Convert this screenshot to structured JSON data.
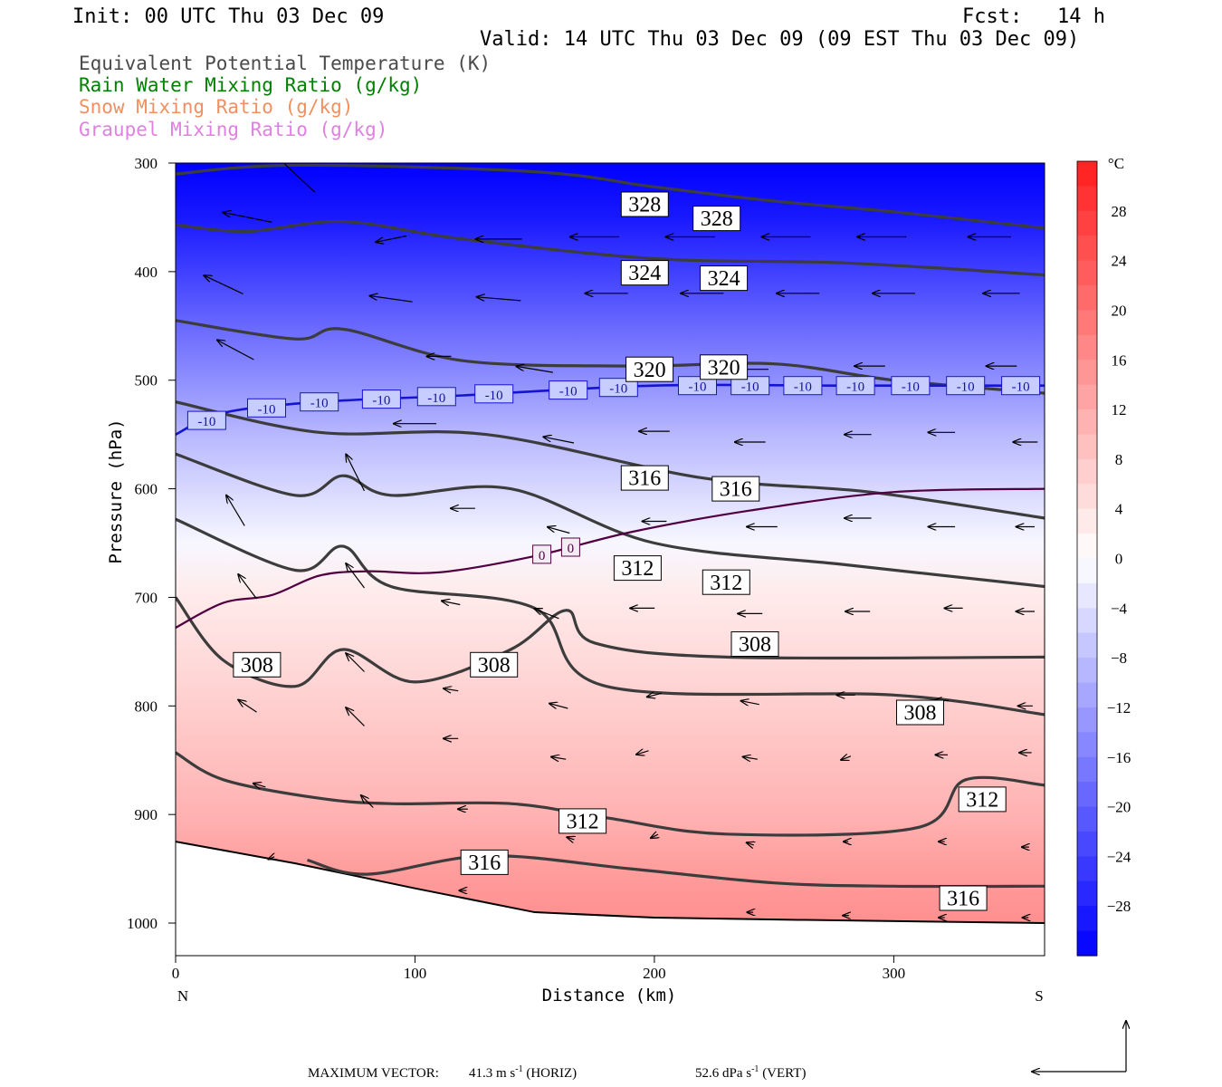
{
  "header": {
    "init": "Init: 00 UTC Thu 03 Dec 09",
    "fcst_label": "Fcst:",
    "fcst_value": "14 h",
    "valid": "Valid: 14 UTC Thu 03 Dec 09 (09 EST Thu 03 Dec 09)"
  },
  "legend": [
    {
      "text": "Equivalent Potential Temperature (K)",
      "color": "#4a4a4a"
    },
    {
      "text": "Rain Water Mixing Ratio (g/kg)",
      "color": "#008000"
    },
    {
      "text": "Snow Mixing Ratio (g/kg)",
      "color": "#f09060"
    },
    {
      "text": "Graupel Mixing Ratio (g/kg)",
      "color": "#e080e0"
    }
  ],
  "footer": {
    "label": "MAXIMUM VECTOR:",
    "horiz_value": "41.3 m s",
    "horiz_exp": "-1",
    "horiz_tag": "(HORIZ)",
    "vert_value": "52.6 dPa s",
    "vert_exp": "-1",
    "vert_tag": "(VERT)"
  },
  "chart_data": {
    "type": "cross-section",
    "xlabel": "Distance (km)",
    "ylabel": "Pressure (hPa)",
    "x_ticks": [
      0,
      100,
      200,
      300
    ],
    "x_range": [
      0,
      363
    ],
    "y_ticks": [
      300,
      400,
      500,
      600,
      700,
      800,
      900,
      1000
    ],
    "y_range": [
      300,
      1030
    ],
    "left_end_label": "N",
    "right_end_label": "S",
    "colorbar": {
      "unit": "°C",
      "labels": [
        28,
        24,
        20,
        16,
        12,
        8,
        4,
        0,
        -4,
        -8,
        -12,
        -16,
        -20,
        -24,
        -28
      ],
      "range": [
        -32,
        32
      ],
      "warm_color": "#ff1e1e",
      "cold_color": "#0000ff"
    },
    "temperature_profile": [
      {
        "p": 300,
        "t": -32
      },
      {
        "p": 350,
        "t": -29
      },
      {
        "p": 400,
        "t": -24
      },
      {
        "p": 450,
        "t": -19
      },
      {
        "p": 500,
        "t": -14
      },
      {
        "p": 550,
        "t": -9
      },
      {
        "p": 600,
        "t": -5
      },
      {
        "p": 650,
        "t": -1
      },
      {
        "p": 700,
        "t": 3
      },
      {
        "p": 750,
        "t": 5
      },
      {
        "p": 800,
        "t": 7
      },
      {
        "p": 850,
        "t": 9
      },
      {
        "p": 900,
        "t": 11
      },
      {
        "p": 950,
        "t": 14
      },
      {
        "p": 1000,
        "t": 16
      }
    ],
    "theta_e_contours": [
      {
        "label": "328",
        "points": [
          [
            0,
            310
          ],
          [
            50,
            302
          ],
          [
            150,
            308
          ],
          [
            200,
            322
          ],
          [
            250,
            335
          ],
          [
            300,
            345
          ],
          [
            363,
            360
          ]
        ]
      },
      {
        "label": "328",
        "points": [
          [
            0,
            357
          ],
          [
            30,
            363
          ],
          [
            70,
            354
          ],
          [
            120,
            370
          ],
          [
            200,
            388
          ],
          [
            280,
            392
          ],
          [
            363,
            403
          ]
        ]
      },
      {
        "label": "324",
        "points": [
          [
            0,
            445
          ],
          [
            50,
            462
          ],
          [
            70,
            453
          ],
          [
            120,
            482
          ],
          [
            190,
            487
          ],
          [
            250,
            485
          ],
          [
            300,
            500
          ],
          [
            363,
            512
          ]
        ]
      },
      {
        "label": "320",
        "points": [
          [
            0,
            520
          ],
          [
            60,
            548
          ],
          [
            130,
            550
          ],
          [
            220,
            590
          ],
          [
            290,
            603
          ],
          [
            363,
            627
          ]
        ]
      },
      {
        "label": "316",
        "points": [
          [
            0,
            568
          ],
          [
            50,
            606
          ],
          [
            70,
            588
          ],
          [
            90,
            606
          ],
          [
            140,
            600
          ],
          [
            200,
            650
          ],
          [
            280,
            670
          ],
          [
            363,
            690
          ]
        ]
      },
      {
        "label": "312",
        "points": [
          [
            0,
            628
          ],
          [
            50,
            675
          ],
          [
            70,
            653
          ],
          [
            90,
            690
          ],
          [
            150,
            710
          ],
          [
            180,
            782
          ],
          [
            300,
            790
          ],
          [
            363,
            808
          ]
        ]
      },
      {
        "label": "308",
        "points": [
          [
            0,
            700
          ],
          [
            20,
            758
          ],
          [
            50,
            782
          ],
          [
            70,
            748
          ],
          [
            100,
            778
          ],
          [
            140,
            748
          ],
          [
            163,
            712
          ],
          [
            175,
            742
          ],
          [
            230,
            755
          ],
          [
            363,
            755
          ]
        ]
      },
      {
        "label": "312",
        "points": [
          [
            0,
            843
          ],
          [
            20,
            868
          ],
          [
            60,
            885
          ],
          [
            90,
            890
          ],
          [
            140,
            890
          ],
          [
            180,
            903
          ],
          [
            230,
            918
          ],
          [
            310,
            912
          ],
          [
            330,
            868
          ],
          [
            363,
            873
          ]
        ]
      },
      {
        "label": "316",
        "points": [
          [
            55,
            942
          ],
          [
            80,
            955
          ],
          [
            130,
            938
          ],
          [
            190,
            950
          ],
          [
            250,
            963
          ],
          [
            300,
            966
          ],
          [
            363,
            966
          ]
        ]
      }
    ],
    "theta_e_labels": [
      {
        "text": "328",
        "x": 196,
        "p": 338
      },
      {
        "text": "328",
        "x": 226,
        "p": 351
      },
      {
        "text": "324",
        "x": 196,
        "p": 401
      },
      {
        "text": "324",
        "x": 229,
        "p": 406
      },
      {
        "text": "320",
        "x": 198,
        "p": 490
      },
      {
        "text": "320",
        "x": 229,
        "p": 488
      },
      {
        "text": "316",
        "x": 196,
        "p": 590
      },
      {
        "text": "316",
        "x": 234,
        "p": 600
      },
      {
        "text": "312",
        "x": 193,
        "p": 673
      },
      {
        "text": "312",
        "x": 230,
        "p": 686
      },
      {
        "text": "308",
        "x": 34,
        "p": 762
      },
      {
        "text": "308",
        "x": 133,
        "p": 762
      },
      {
        "text": "308",
        "x": 242,
        "p": 743
      },
      {
        "text": "308",
        "x": 311,
        "p": 806
      },
      {
        "text": "312",
        "x": 337,
        "p": 886
      },
      {
        "text": "312",
        "x": 170,
        "p": 906
      },
      {
        "text": "316",
        "x": 129,
        "p": 944
      },
      {
        "text": "316",
        "x": 329,
        "p": 977
      }
    ],
    "isotherm_minus10": {
      "label": "-10",
      "points": [
        [
          0,
          550
        ],
        [
          20,
          530
        ],
        [
          60,
          520
        ],
        [
          120,
          514
        ],
        [
          200,
          505
        ],
        [
          280,
          505
        ],
        [
          363,
          505
        ]
      ],
      "label_x": [
        13,
        38,
        60,
        86,
        109,
        133,
        164,
        185,
        218,
        240,
        262,
        284,
        307,
        330,
        353
      ]
    },
    "isotherm_zero": {
      "label": "0",
      "points": [
        [
          0,
          728
        ],
        [
          20,
          705
        ],
        [
          40,
          698
        ],
        [
          60,
          680
        ],
        [
          80,
          676
        ],
        [
          110,
          677
        ],
        [
          150,
          662
        ],
        [
          190,
          640
        ],
        [
          240,
          620
        ],
        [
          300,
          603
        ],
        [
          363,
          600
        ]
      ],
      "label_x": [
        153,
        165
      ]
    },
    "terrain_surface": [
      [
        0,
        925
      ],
      [
        50,
        945
      ],
      [
        100,
        968
      ],
      [
        150,
        990
      ],
      [
        200,
        995
      ],
      [
        260,
        997
      ],
      [
        363,
        1000
      ]
    ],
    "wind_vectors": [
      {
        "x": 50,
        "p": 310,
        "u": -32,
        "w": 30
      },
      {
        "x": 30,
        "p": 350,
        "u": -40,
        "w": 8
      },
      {
        "x": 90,
        "p": 370,
        "u": -25,
        "w": -5
      },
      {
        "x": 135,
        "p": 370,
        "u": -38,
        "w": 0
      },
      {
        "x": 175,
        "p": 368,
        "u": -40,
        "w": 0
      },
      {
        "x": 215,
        "p": 368,
        "u": -40,
        "w": 0
      },
      {
        "x": 255,
        "p": 368,
        "u": -40,
        "w": 0
      },
      {
        "x": 295,
        "p": 368,
        "u": -40,
        "w": 0
      },
      {
        "x": 340,
        "p": 368,
        "u": -35,
        "w": 0
      },
      {
        "x": 20,
        "p": 412,
        "u": -32,
        "w": 15
      },
      {
        "x": 90,
        "p": 425,
        "u": -35,
        "w": 5
      },
      {
        "x": 135,
        "p": 425,
        "u": -36,
        "w": 3
      },
      {
        "x": 180,
        "p": 420,
        "u": -35,
        "w": 0
      },
      {
        "x": 220,
        "p": 420,
        "u": -35,
        "w": 0
      },
      {
        "x": 260,
        "p": 420,
        "u": -35,
        "w": 0
      },
      {
        "x": 300,
        "p": 420,
        "u": -35,
        "w": 0
      },
      {
        "x": 345,
        "p": 420,
        "u": -30,
        "w": 0
      },
      {
        "x": 25,
        "p": 472,
        "u": -30,
        "w": 16
      },
      {
        "x": 110,
        "p": 478,
        "u": -20,
        "w": 0
      },
      {
        "x": 150,
        "p": 490,
        "u": -30,
        "w": 5
      },
      {
        "x": 240,
        "p": 490,
        "u": -30,
        "w": 0
      },
      {
        "x": 290,
        "p": 487,
        "u": -25,
        "w": 0
      },
      {
        "x": 345,
        "p": 487,
        "u": -25,
        "w": 0
      },
      {
        "x": 100,
        "p": 540,
        "u": -35,
        "w": 0
      },
      {
        "x": 160,
        "p": 555,
        "u": -25,
        "w": 5
      },
      {
        "x": 200,
        "p": 547,
        "u": -25,
        "w": 0
      },
      {
        "x": 240,
        "p": 557,
        "u": -25,
        "w": 0
      },
      {
        "x": 285,
        "p": 550,
        "u": -22,
        "w": 0
      },
      {
        "x": 320,
        "p": 548,
        "u": -22,
        "w": 0
      },
      {
        "x": 355,
        "p": 557,
        "u": -20,
        "w": 0
      },
      {
        "x": 25,
        "p": 620,
        "u": -15,
        "w": 25
      },
      {
        "x": 75,
        "p": 585,
        "u": -15,
        "w": 30
      },
      {
        "x": 120,
        "p": 618,
        "u": -20,
        "w": 0
      },
      {
        "x": 160,
        "p": 638,
        "u": -18,
        "w": 5
      },
      {
        "x": 200,
        "p": 630,
        "u": -20,
        "w": 0
      },
      {
        "x": 245,
        "p": 635,
        "u": -25,
        "w": 0
      },
      {
        "x": 285,
        "p": 627,
        "u": -22,
        "w": 0
      },
      {
        "x": 320,
        "p": 635,
        "u": -22,
        "w": 0
      },
      {
        "x": 355,
        "p": 635,
        "u": -15,
        "w": 0
      },
      {
        "x": 30,
        "p": 690,
        "u": -15,
        "w": 20
      },
      {
        "x": 75,
        "p": 680,
        "u": -15,
        "w": 20
      },
      {
        "x": 115,
        "p": 705,
        "u": -15,
        "w": 3
      },
      {
        "x": 155,
        "p": 715,
        "u": -20,
        "w": 8
      },
      {
        "x": 195,
        "p": 710,
        "u": -20,
        "w": 0
      },
      {
        "x": 240,
        "p": 715,
        "u": -20,
        "w": 0
      },
      {
        "x": 285,
        "p": 713,
        "u": -20,
        "w": 0
      },
      {
        "x": 325,
        "p": 710,
        "u": -15,
        "w": 0
      },
      {
        "x": 355,
        "p": 713,
        "u": -15,
        "w": 0
      },
      {
        "x": 30,
        "p": 760,
        "u": -10,
        "w": 12
      },
      {
        "x": 75,
        "p": 760,
        "u": -15,
        "w": 15
      },
      {
        "x": 115,
        "p": 785,
        "u": -12,
        "w": 2
      },
      {
        "x": 160,
        "p": 800,
        "u": -15,
        "w": 4
      },
      {
        "x": 200,
        "p": 790,
        "u": -12,
        "w": -3
      },
      {
        "x": 240,
        "p": 797,
        "u": -15,
        "w": 3
      },
      {
        "x": 280,
        "p": 790,
        "u": -15,
        "w": 0
      },
      {
        "x": 320,
        "p": 795,
        "u": -12,
        "w": 0
      },
      {
        "x": 355,
        "p": 800,
        "u": -12,
        "w": 0
      },
      {
        "x": 30,
        "p": 800,
        "u": -15,
        "w": 10
      },
      {
        "x": 75,
        "p": 810,
        "u": -15,
        "w": 15
      },
      {
        "x": 115,
        "p": 830,
        "u": -12,
        "w": 0
      },
      {
        "x": 160,
        "p": 848,
        "u": -12,
        "w": 2
      },
      {
        "x": 195,
        "p": 843,
        "u": -10,
        "w": -3
      },
      {
        "x": 240,
        "p": 848,
        "u": -12,
        "w": 2
      },
      {
        "x": 280,
        "p": 848,
        "u": -8,
        "w": -3
      },
      {
        "x": 320,
        "p": 845,
        "u": -10,
        "w": 0
      },
      {
        "x": 355,
        "p": 843,
        "u": -10,
        "w": 0
      },
      {
        "x": 35,
        "p": 873,
        "u": -10,
        "w": 3
      },
      {
        "x": 80,
        "p": 888,
        "u": -10,
        "w": 10
      },
      {
        "x": 120,
        "p": 895,
        "u": -8,
        "w": 0
      },
      {
        "x": 165,
        "p": 922,
        "u": -6,
        "w": 2
      },
      {
        "x": 200,
        "p": 920,
        "u": -6,
        "w": -3
      },
      {
        "x": 240,
        "p": 927,
        "u": -6,
        "w": 2
      },
      {
        "x": 280,
        "p": 925,
        "u": -4,
        "w": 0
      },
      {
        "x": 320,
        "p": 925,
        "u": -5,
        "w": 0
      },
      {
        "x": 355,
        "p": 930,
        "u": -6,
        "w": 0
      },
      {
        "x": 40,
        "p": 940,
        "u": -5,
        "w": -2
      },
      {
        "x": 120,
        "p": 970,
        "u": -6,
        "w": 0
      },
      {
        "x": 240,
        "p": 990,
        "u": -5,
        "w": 0
      },
      {
        "x": 280,
        "p": 993,
        "u": -5,
        "w": 0
      },
      {
        "x": 320,
        "p": 995,
        "u": -5,
        "w": 0
      },
      {
        "x": 355,
        "p": 995,
        "u": -5,
        "w": 0
      }
    ]
  }
}
